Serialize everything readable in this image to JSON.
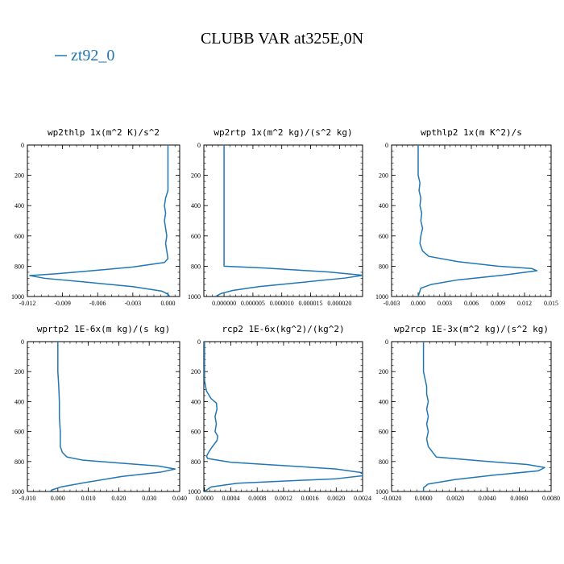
{
  "figure": {
    "title": "CLUBB VAR at325E,0N",
    "legend_label": "zt92_0",
    "line_color": "#1f77b4"
  },
  "chart_data": [
    {
      "type": "line",
      "title": "wp2thlp  1x(m^2 K)/s^2",
      "xlim": [
        -0.012,
        0.001
      ],
      "ylim": [
        1000,
        0
      ],
      "xticks": [
        -0.012,
        -0.009,
        -0.006,
        -0.003,
        0.0
      ],
      "xtick_labels": [
        "-0.012",
        "-0.009",
        "-0.006",
        "-0.003",
        "0.000"
      ],
      "yticks": [
        0,
        200,
        400,
        600,
        800,
        1000
      ],
      "ytick_labels": [
        "0",
        "200",
        "400",
        "600",
        "800",
        "1000"
      ],
      "series": [
        {
          "x": [
            0.0,
            0.0,
            0.0,
            0.0,
            -0.0002,
            -0.0003,
            -0.0002,
            -0.0003,
            -0.0002,
            -0.0001,
            -0.0002,
            -0.0001,
            0.0,
            -0.0003,
            -0.003,
            -0.0065,
            -0.0095,
            -0.0118,
            -0.0105,
            -0.007,
            -0.003,
            -0.0005,
            0.0,
            0.0001,
            -0.0002
          ],
          "y": [
            0,
            100,
            200,
            300,
            350,
            400,
            450,
            500,
            550,
            600,
            650,
            700,
            750,
            775,
            805,
            830,
            850,
            862,
            880,
            905,
            935,
            965,
            985,
            995,
            1000
          ]
        }
      ]
    },
    {
      "type": "line",
      "title": "wp2rtp  1x(m^2 kg)/(s^2 kg)",
      "xlim": [
        -3.5e-06,
        2.4e-05
      ],
      "ylim": [
        1000,
        0
      ],
      "xticks": [
        0.0,
        5e-06,
        1e-05,
        1.5e-05,
        2e-05
      ],
      "xtick_labels": [
        "0.000000",
        "0.000005",
        "0.000010",
        "0.000015",
        "0.000020"
      ],
      "yticks": [
        0,
        200,
        400,
        600,
        800,
        1000
      ],
      "ytick_labels": [
        "0",
        "200",
        "400",
        "600",
        "800",
        "1000"
      ],
      "series": [
        {
          "x": [
            0.0,
            0.0,
            0.0,
            0.0,
            0.0,
            0.0,
            0.0,
            0.0,
            0.0,
            0.0,
            0.0,
            0.0,
            0.0,
            0.0,
            0.0,
            7e-06,
            1.8e-05,
            2.4e-05,
            2.1e-05,
            6e-06,
            1.5e-06,
            -5e-07,
            -1.5e-06
          ],
          "y": [
            0,
            100,
            200,
            300,
            400,
            500,
            600,
            650,
            700,
            750,
            770,
            780,
            790,
            795,
            800,
            812,
            838,
            860,
            878,
            935,
            960,
            980,
            1000
          ]
        }
      ]
    },
    {
      "type": "line",
      "title": "wpthlp2  1x(m K^2)/s",
      "xlim": [
        -0.003,
        0.015
      ],
      "ylim": [
        1000,
        0
      ],
      "xticks": [
        -0.003,
        0.0,
        0.003,
        0.006,
        0.009,
        0.012,
        0.015
      ],
      "xtick_labels": [
        "-0.003",
        "0.000",
        "0.003",
        "0.006",
        "0.009",
        "0.012",
        "0.015"
      ],
      "yticks": [
        0,
        200,
        400,
        600,
        800,
        1000
      ],
      "ytick_labels": [
        "0",
        "200",
        "400",
        "600",
        "800",
        "1000"
      ],
      "series": [
        {
          "x": [
            0.0,
            0.0,
            0.0,
            0.0002,
            0.0001,
            0.0003,
            0.0002,
            0.0004,
            0.0003,
            0.0005,
            0.0003,
            0.0002,
            0.0005,
            0.0012,
            0.0045,
            0.009,
            0.0128,
            0.0134,
            0.0095,
            0.0045,
            0.0015,
            0.0003,
            0.0
          ],
          "y": [
            0,
            100,
            200,
            250,
            300,
            350,
            400,
            450,
            500,
            550,
            600,
            650,
            700,
            735,
            770,
            800,
            815,
            830,
            860,
            890,
            920,
            945,
            1000
          ]
        }
      ]
    },
    {
      "type": "line",
      "title": "wprtp2  1E-6x(m kg)/(s kg)",
      "xlim": [
        -0.01,
        0.04
      ],
      "ylim": [
        1000,
        0
      ],
      "xticks": [
        -0.01,
        0.0,
        0.01,
        0.02,
        0.03,
        0.04
      ],
      "xtick_labels": [
        "-0.010",
        "0.000",
        "0.010",
        "0.020",
        "0.030",
        "0.040"
      ],
      "yticks": [
        0,
        200,
        400,
        600,
        800,
        1000
      ],
      "ytick_labels": [
        "0",
        "200",
        "400",
        "600",
        "800",
        "1000"
      ],
      "series": [
        {
          "x": [
            0.0,
            0.0,
            0.0,
            0.0003,
            0.0005,
            0.0005,
            0.0008,
            0.0008,
            0.0015,
            0.003,
            0.008,
            0.02,
            0.033,
            0.0385,
            0.034,
            0.021,
            0.009,
            0.001,
            -0.002,
            -0.0025
          ],
          "y": [
            0,
            100,
            200,
            300,
            400,
            500,
            600,
            700,
            740,
            770,
            790,
            810,
            830,
            850,
            870,
            900,
            940,
            970,
            990,
            1000
          ]
        }
      ]
    },
    {
      "type": "line",
      "title": "rcp2  1E-6x(kg^2)/(kg^2)",
      "xlim": [
        -1e-05,
        0.0024
      ],
      "ylim": [
        1000,
        0
      ],
      "xticks": [
        0.0,
        0.0004,
        0.0008,
        0.0012,
        0.0016,
        0.002,
        0.0024
      ],
      "xtick_labels": [
        "0.0000",
        "0.0004",
        "0.0008",
        "0.0012",
        "0.0016",
        "0.0020",
        "0.0024"
      ],
      "yticks": [
        0,
        200,
        400,
        600,
        800,
        1000
      ],
      "ytick_labels": [
        "0",
        "200",
        "400",
        "600",
        "800",
        "1000"
      ],
      "series": [
        {
          "x": [
            0.0,
            0.0,
            0.0,
            0.0,
            3e-05,
            0.0001,
            0.00018,
            0.00019,
            0.00016,
            0.00018,
            0.00016,
            0.0002,
            0.00019,
            0.00012,
            6e-05,
            3e-05,
            5e-05,
            0.0004,
            0.0013,
            0.002,
            0.0024,
            0.0024,
            0.002,
            0.0005,
            0.0001,
            0.0
          ],
          "y": [
            0,
            100,
            200,
            260,
            330,
            380,
            410,
            450,
            500,
            550,
            600,
            630,
            660,
            700,
            740,
            765,
            780,
            805,
            830,
            850,
            875,
            895,
            915,
            945,
            970,
            1000
          ]
        }
      ]
    },
    {
      "type": "line",
      "title": "wp2rcp  1E-3x(m^2 kg)/(s^2 kg)",
      "xlim": [
        -0.002,
        0.008
      ],
      "ylim": [
        1000,
        0
      ],
      "xticks": [
        -0.002,
        0.0,
        0.002,
        0.004,
        0.006,
        0.008
      ],
      "xtick_labels": [
        "-0.0020",
        "0.0000",
        "0.0020",
        "0.0040",
        "0.0060",
        "0.0080"
      ],
      "yticks": [
        0,
        200,
        400,
        600,
        800,
        1000
      ],
      "ytick_labels": [
        "0",
        "200",
        "400",
        "600",
        "800",
        "1000"
      ],
      "series": [
        {
          "x": [
            0.0,
            0.0,
            0.0,
            0.0001,
            0.0002,
            0.0002,
            0.0003,
            0.0002,
            0.0003,
            0.0002,
            0.0003,
            0.0002,
            0.0003,
            0.0008,
            0.0035,
            0.0065,
            0.0076,
            0.0072,
            0.0045,
            0.002,
            0.0003,
            0.0,
            0.0
          ],
          "y": [
            0,
            100,
            200,
            250,
            300,
            350,
            400,
            450,
            500,
            550,
            600,
            650,
            700,
            770,
            795,
            820,
            840,
            862,
            890,
            920,
            950,
            975,
            1000
          ]
        }
      ]
    }
  ]
}
